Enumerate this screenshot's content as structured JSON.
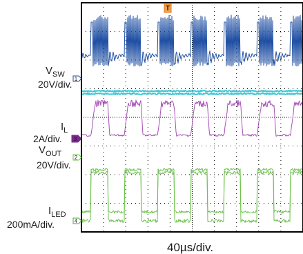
{
  "chart_data": {
    "type": "line",
    "title": "",
    "xlabel": "40µs/div.",
    "trigger_marker": "T",
    "grid": true,
    "time_per_div_us": 40,
    "x_range_us": [
      0,
      400
    ],
    "period_us": 60,
    "channels": [
      {
        "id": "1",
        "name": "V_SW",
        "name_main": "V",
        "name_sub": "SW",
        "scale": "20V/div.",
        "color": "#1f4fa3",
        "marker_color": "#1f4fa3",
        "waveform": "switching-bursts"
      },
      {
        "id": "",
        "name": "",
        "scale": "",
        "color": "#3fc6d6",
        "waveform": "flat-noisy"
      },
      {
        "id": "3",
        "name": "I_L",
        "name_main": "I",
        "name_sub": "L",
        "scale": "2A/div.",
        "color": "#a64fb6",
        "marker_color": "#7b2a8c",
        "waveform": "pulsed-current"
      },
      {
        "id": "2",
        "name": "V_OUT",
        "name_main": "V",
        "name_sub": "OUT",
        "scale": "20V/div.",
        "color": "#6cc24a",
        "marker_color": "#6cc24a",
        "waveform": "square"
      },
      {
        "id": "4",
        "name": "I_LED",
        "name_main": "I",
        "name_sub": "LED",
        "scale": "200mA/div.",
        "color": "#6cc24a",
        "marker_color": "#4aa93a",
        "waveform": "square"
      }
    ]
  }
}
